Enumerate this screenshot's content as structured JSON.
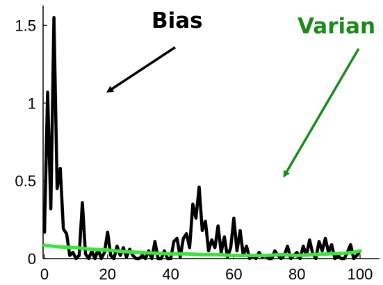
{
  "chart_data": {
    "type": "line",
    "title": "",
    "xlabel": "",
    "ylabel": "",
    "xlim": [
      0,
      100
    ],
    "ylim": [
      0,
      1.6
    ],
    "x_ticks": [
      0,
      20,
      40,
      60,
      80,
      100
    ],
    "y_ticks": [
      0,
      0.5,
      1,
      1.5
    ],
    "x_tick_labels": [
      "0",
      "20",
      "40",
      "60",
      "80",
      "100"
    ],
    "y_tick_labels": [
      "0",
      "0.5",
      "1",
      "1.5"
    ],
    "grid": false,
    "series": [
      {
        "color": "#000000",
        "x": [
          0,
          1,
          2,
          3,
          4,
          5,
          6,
          7,
          8,
          9,
          10,
          11,
          12,
          13,
          14,
          15,
          16,
          17,
          18,
          19,
          20,
          21,
          22,
          23,
          24,
          25,
          26,
          27,
          28,
          29,
          30,
          31,
          32,
          33,
          34,
          35,
          36,
          37,
          38,
          39,
          40,
          41,
          42,
          43,
          44,
          45,
          46,
          47,
          48,
          49,
          50,
          51,
          52,
          53,
          54,
          55,
          56,
          57,
          58,
          59,
          60,
          61,
          62,
          63,
          64,
          65,
          66,
          67,
          68,
          69,
          70,
          71,
          72,
          73,
          74,
          75,
          76,
          77,
          78,
          79,
          80,
          81,
          82,
          83,
          84,
          85,
          86,
          87,
          88,
          89,
          90,
          91,
          92,
          93,
          94,
          95,
          96,
          97,
          98,
          99,
          100
        ],
        "values": [
          0.17,
          1.07,
          0.32,
          1.55,
          0.45,
          0.58,
          0.19,
          0.16,
          0.02,
          0.04,
          0.0,
          0.02,
          0.36,
          0.03,
          0.0,
          0.05,
          0.0,
          0.06,
          0.0,
          0.04,
          0.17,
          0.02,
          0.0,
          0.08,
          0.02,
          0.07,
          0.01,
          0.06,
          0.02,
          0.0,
          0.0,
          0.02,
          0.0,
          0.05,
          0.0,
          0.11,
          0.0,
          0.0,
          0.05,
          0.0,
          0.0,
          0.11,
          0.13,
          0.01,
          0.13,
          0.16,
          0.07,
          0.35,
          0.26,
          0.46,
          0.18,
          0.24,
          0.05,
          0.12,
          0.07,
          0.21,
          0.04,
          0.14,
          0.01,
          0.07,
          0.26,
          0.05,
          0.18,
          0.02,
          0.08,
          0.0,
          0.02,
          0.0,
          0.04,
          0.01,
          0.02,
          0.0,
          0.0,
          0.05,
          0.02,
          0.0,
          0.02,
          0.08,
          0.0,
          0.02,
          0.04,
          0.0,
          0.08,
          0.02,
          0.12,
          0.03,
          0.0,
          0.11,
          0.05,
          0.13,
          0.04,
          0.09,
          0.0,
          0.02,
          0.0,
          0.0,
          0.04,
          0.09,
          0.0,
          0.02,
          0.05
        ]
      },
      {
        "color": "#39e639",
        "x": [
          0,
          5,
          10,
          15,
          20,
          25,
          30,
          35,
          40,
          45,
          50,
          55,
          60,
          65,
          70,
          75,
          80,
          85,
          90,
          95,
          98,
          100
        ],
        "values": [
          0.085,
          0.075,
          0.07,
          0.06,
          0.055,
          0.045,
          0.04,
          0.035,
          0.03,
          0.03,
          0.025,
          0.025,
          0.02,
          0.02,
          0.02,
          0.025,
          0.02,
          0.025,
          0.03,
          0.035,
          0.04,
          0.05
        ]
      }
    ],
    "annotations": [
      {
        "text": "Bias",
        "color": "#000000",
        "arrow_to": [
          19,
          1.05
        ]
      },
      {
        "text": "Varian",
        "color": "#1a8a1a",
        "arrow_to": [
          75,
          0.5
        ]
      }
    ]
  }
}
